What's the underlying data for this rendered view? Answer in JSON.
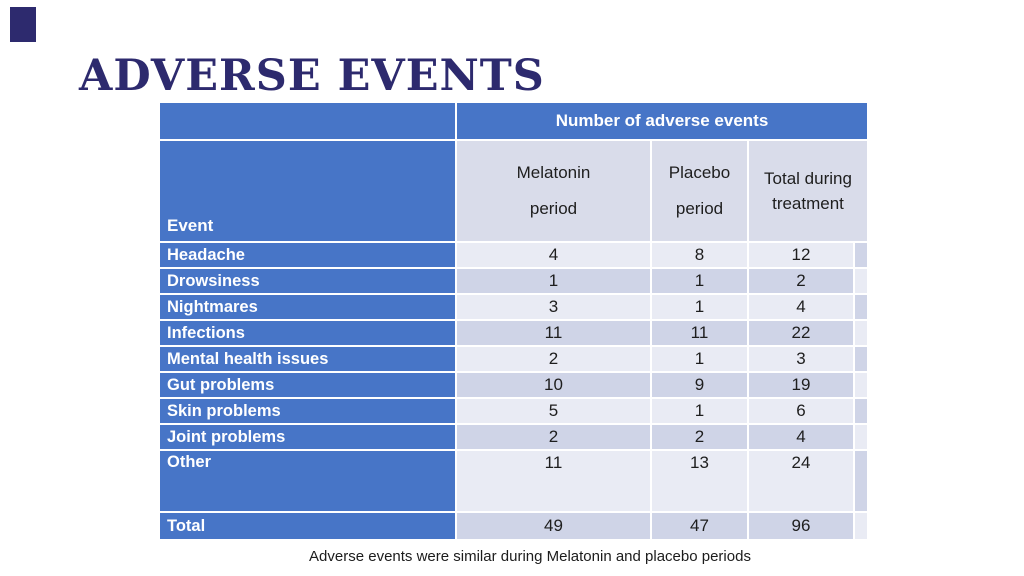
{
  "slide": {
    "title": "ADVERSE EVENTS",
    "caption": "Adverse events were similar during Melatonin and placebo periods"
  },
  "table": {
    "group_header": "Number of adverse events",
    "event_header": "Event",
    "columns": [
      {
        "line1": "Melatonin",
        "line2": "period"
      },
      {
        "line1": "Placebo",
        "line2": "period"
      },
      {
        "line1": "Total during",
        "line2": "treatment"
      }
    ],
    "rows": [
      {
        "label": "Headache",
        "melatonin": "4",
        "placebo": "8",
        "total": "12"
      },
      {
        "label": "Drowsiness",
        "melatonin": "1",
        "placebo": "1",
        "total": "2"
      },
      {
        "label": "Nightmares",
        "melatonin": "3",
        "placebo": "1",
        "total": "4"
      },
      {
        "label": "Infections",
        "melatonin": "11",
        "placebo": "11",
        "total": "22"
      },
      {
        "label": "Mental health issues",
        "melatonin": "2",
        "placebo": "1",
        "total": "3"
      },
      {
        "label": "Gut problems",
        "melatonin": "10",
        "placebo": "9",
        "total": "19"
      },
      {
        "label": "Skin problems",
        "melatonin": "5",
        "placebo": "1",
        "total": "6"
      },
      {
        "label": "Joint problems",
        "melatonin": "2",
        "placebo": "2",
        "total": "4"
      },
      {
        "label": "Other",
        "melatonin": "11",
        "placebo": "13",
        "total": "24"
      },
      {
        "label": "Total",
        "melatonin": "49",
        "placebo": "47",
        "total": "96"
      }
    ]
  },
  "colors": {
    "header_blue": "#4775C7",
    "band_light": "#E9EBF4",
    "band_dark": "#CFD4E7",
    "subheader_bg": "#D9DCEA",
    "title_navy": "#2D2A6E"
  }
}
